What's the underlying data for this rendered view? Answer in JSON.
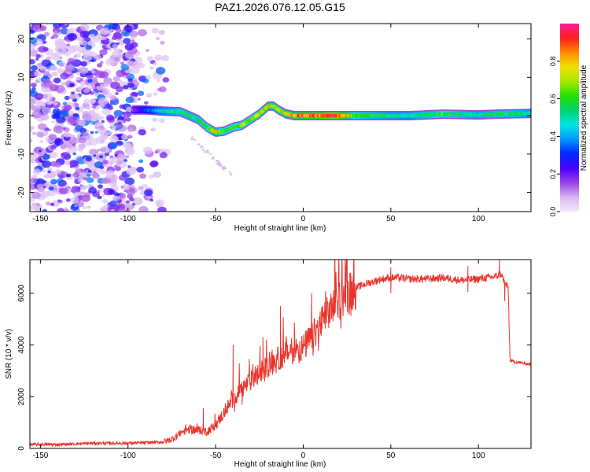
{
  "title": "PAZ1.2026.076.12.05.G15",
  "chart_data": [
    {
      "type": "heatmap",
      "title": "",
      "xlabel": "Height of straight line (km)",
      "ylabel": "Frequency (Hz)",
      "xlim": [
        -156,
        130
      ],
      "ylim": [
        -25,
        24
      ],
      "xticks": [
        -150,
        -100,
        -50,
        0,
        50,
        100
      ],
      "yticks": [
        -20,
        -10,
        0,
        10,
        20
      ],
      "colorbar": {
        "label": "Normalized spectral amplitude",
        "range": [
          0,
          1
        ],
        "ticks": [
          "0.0",
          "0.2",
          "0.4",
          "0.6",
          "0.8"
        ],
        "tick_values": [
          0,
          0.2,
          0.4,
          0.6,
          0.8
        ],
        "colors": [
          "#f4e8fb",
          "#d8b6f2",
          "#9a40e6",
          "#4b00ff",
          "#0028ff",
          "#0096ff",
          "#00e6e6",
          "#00d26e",
          "#22e000",
          "#a8e600",
          "#f0e000",
          "#ff8a00",
          "#ff1e1e",
          "#ff1f96"
        ]
      },
      "noise_region_km": [
        -156,
        -78
      ],
      "track": {
        "height_km": [
          -97,
          -90,
          -80,
          -70,
          -60,
          -55,
          -50,
          -45,
          -40,
          -35,
          -30,
          -25,
          -20,
          -17,
          -14,
          -10,
          -5,
          0,
          10,
          20,
          30,
          40,
          50,
          60,
          70,
          80,
          90,
          100,
          110,
          120,
          130
        ],
        "frequency_hz": [
          1.5,
          1.5,
          1.2,
          1.0,
          -1.0,
          -3.0,
          -4.3,
          -4.0,
          -3.0,
          -2.5,
          -1.0,
          0.5,
          2.5,
          2.5,
          1.5,
          0.5,
          0.0,
          0.0,
          0.0,
          0.0,
          0.0,
          0.0,
          0.0,
          0.0,
          0.2,
          0.4,
          0.3,
          0.2,
          0.4,
          0.5,
          0.6
        ],
        "amplitude": [
          0.15,
          0.3,
          0.45,
          0.55,
          0.55,
          0.6,
          0.75,
          0.6,
          0.6,
          0.65,
          0.65,
          0.7,
          0.75,
          0.7,
          0.7,
          0.75,
          0.8,
          0.85,
          0.9,
          0.95,
          0.6,
          0.55,
          0.5,
          0.5,
          0.55,
          0.6,
          0.55,
          0.5,
          0.55,
          0.55,
          0.5
        ]
      }
    },
    {
      "type": "line",
      "title": "",
      "xlabel": "Height of straight line (km)",
      "ylabel": "SNR (10 * v/v)",
      "xlim": [
        -156,
        130
      ],
      "ylim": [
        0,
        7300
      ],
      "xticks": [
        -150,
        -100,
        -50,
        0,
        50,
        100
      ],
      "yticks": [
        0,
        2000,
        4000,
        6000
      ],
      "color": "#e8342c",
      "series": [
        {
          "name": "SNR",
          "x": [
            -156,
            -140,
            -120,
            -100,
            -90,
            -80,
            -75,
            -70,
            -65,
            -60,
            -55,
            -50,
            -45,
            -40,
            -35,
            -30,
            -25,
            -20,
            -15,
            -10,
            -5,
            0,
            5,
            10,
            15,
            20,
            25,
            30,
            35,
            40,
            45,
            50,
            55,
            60,
            70,
            80,
            90,
            100,
            105,
            110,
            113,
            115,
            117,
            118,
            120,
            125,
            130
          ],
          "y": [
            150,
            150,
            200,
            200,
            220,
            250,
            350,
            600,
            750,
            700,
            650,
            900,
            1400,
            1900,
            2300,
            2600,
            2900,
            3200,
            3400,
            3700,
            3800,
            3900,
            4300,
            4800,
            5300,
            5700,
            6000,
            6200,
            6350,
            6450,
            6550,
            6600,
            6600,
            6550,
            6550,
            6600,
            6500,
            6550,
            6600,
            6650,
            6750,
            6400,
            6200,
            3400,
            3350,
            3300,
            3250
          ]
        }
      ],
      "spikes": [
        {
          "x": -57,
          "y": 1550
        },
        {
          "x": -40,
          "y": 4000
        },
        {
          "x": -23,
          "y": 4300
        },
        {
          "x": -13,
          "y": 5500
        },
        {
          "x": 50,
          "y": 7000
        },
        {
          "x": 94,
          "y": 7050
        },
        {
          "x": 112,
          "y": 7300
        },
        {
          "x": 50,
          "y": 6000
        },
        {
          "x": 94,
          "y": 6050
        },
        {
          "x": 115,
          "y": 5700
        }
      ]
    }
  ]
}
